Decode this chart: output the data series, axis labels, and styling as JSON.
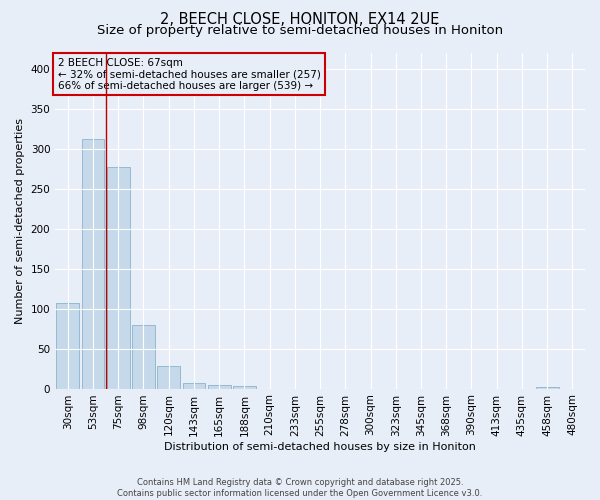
{
  "title_line1": "2, BEECH CLOSE, HONITON, EX14 2UE",
  "title_line2": "Size of property relative to semi-detached houses in Honiton",
  "xlabel": "Distribution of semi-detached houses by size in Honiton",
  "ylabel": "Number of semi-detached properties",
  "categories": [
    "30sqm",
    "53sqm",
    "75sqm",
    "98sqm",
    "120sqm",
    "143sqm",
    "165sqm",
    "188sqm",
    "210sqm",
    "233sqm",
    "255sqm",
    "278sqm",
    "300sqm",
    "323sqm",
    "345sqm",
    "368sqm",
    "390sqm",
    "413sqm",
    "435sqm",
    "458sqm",
    "480sqm"
  ],
  "values": [
    107,
    312,
    277,
    80,
    28,
    7,
    4,
    3,
    0,
    0,
    0,
    0,
    0,
    0,
    0,
    0,
    0,
    0,
    0,
    2,
    0
  ],
  "bar_color": "#c5d9ea",
  "bar_edge_color": "#8ab4cc",
  "vline_x": 1.5,
  "vline_color": "#bb0000",
  "annotation_title": "2 BEECH CLOSE: 67sqm",
  "annotation_line2": "← 32% of semi-detached houses are smaller (257)",
  "annotation_line3": "66% of semi-detached houses are larger (539) →",
  "annotation_box_facecolor": "#e8eef8",
  "annotation_box_edgecolor": "#cc0000",
  "footer_line1": "Contains HM Land Registry data © Crown copyright and database right 2025.",
  "footer_line2": "Contains public sector information licensed under the Open Government Licence v3.0.",
  "ylim": [
    0,
    420
  ],
  "background_color": "#e8eef8",
  "grid_color": "#ffffff",
  "title_fontsize": 10.5,
  "subtitle_fontsize": 9.5,
  "footer_fontsize": 6.0,
  "axis_label_fontsize": 8.0,
  "tick_fontsize": 7.5
}
